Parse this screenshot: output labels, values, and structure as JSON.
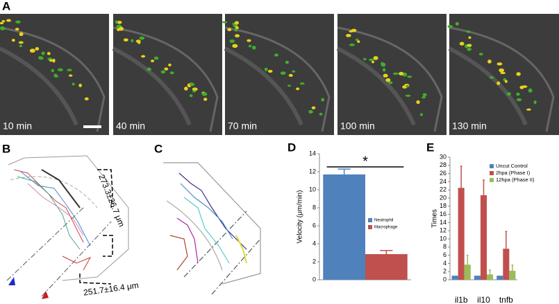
{
  "panel_labels": [
    "A",
    "B",
    "C",
    "D",
    "E"
  ],
  "panel_a": {
    "time_labels": [
      "10 min",
      "40 min",
      "70 min",
      "100 min",
      "130 min"
    ]
  },
  "panel_b": {
    "annotations": [
      "273.3±26.7 μm",
      "251.7±16.4 μm"
    ]
  },
  "chart_data": [
    {
      "type": "bar",
      "ylabel": "Velocity (μm/min)",
      "ylim": [
        0,
        14
      ],
      "yticks": [
        0,
        2,
        4,
        6,
        8,
        10,
        12,
        14
      ],
      "categories": [
        null
      ],
      "annotation": "*",
      "series": [
        {
          "name": "Neutrophil",
          "color": "#4f81bd",
          "values": [
            11.7
          ],
          "errors": [
            0.6
          ]
        },
        {
          "name": "Macrophage",
          "color": "#c0504d",
          "values": [
            2.85
          ],
          "errors": [
            0.4
          ]
        }
      ]
    },
    {
      "type": "bar",
      "ylabel": "Times",
      "ylim": [
        0,
        30
      ],
      "yticks": [
        0,
        2,
        4,
        6,
        8,
        10,
        12,
        14,
        16,
        18,
        20,
        22,
        24,
        26,
        28,
        30
      ],
      "categories": [
        "il1b",
        "il10",
        "tnfb"
      ],
      "series": [
        {
          "name": "Uncut Control",
          "color": "#4f81bd",
          "values": [
            1,
            1,
            1
          ]
        },
        {
          "name": "2hpa (Phase I)",
          "color": "#c0504d",
          "values": [
            22.5,
            20.7,
            7.6
          ],
          "errors": [
            5.3,
            3.7,
            4.2
          ]
        },
        {
          "name": "12hpa (Phase II)",
          "color": "#9bbb59",
          "values": [
            3.7,
            1.3,
            2.2
          ],
          "errors": [
            2.3,
            1.1,
            1.4
          ]
        }
      ]
    }
  ]
}
